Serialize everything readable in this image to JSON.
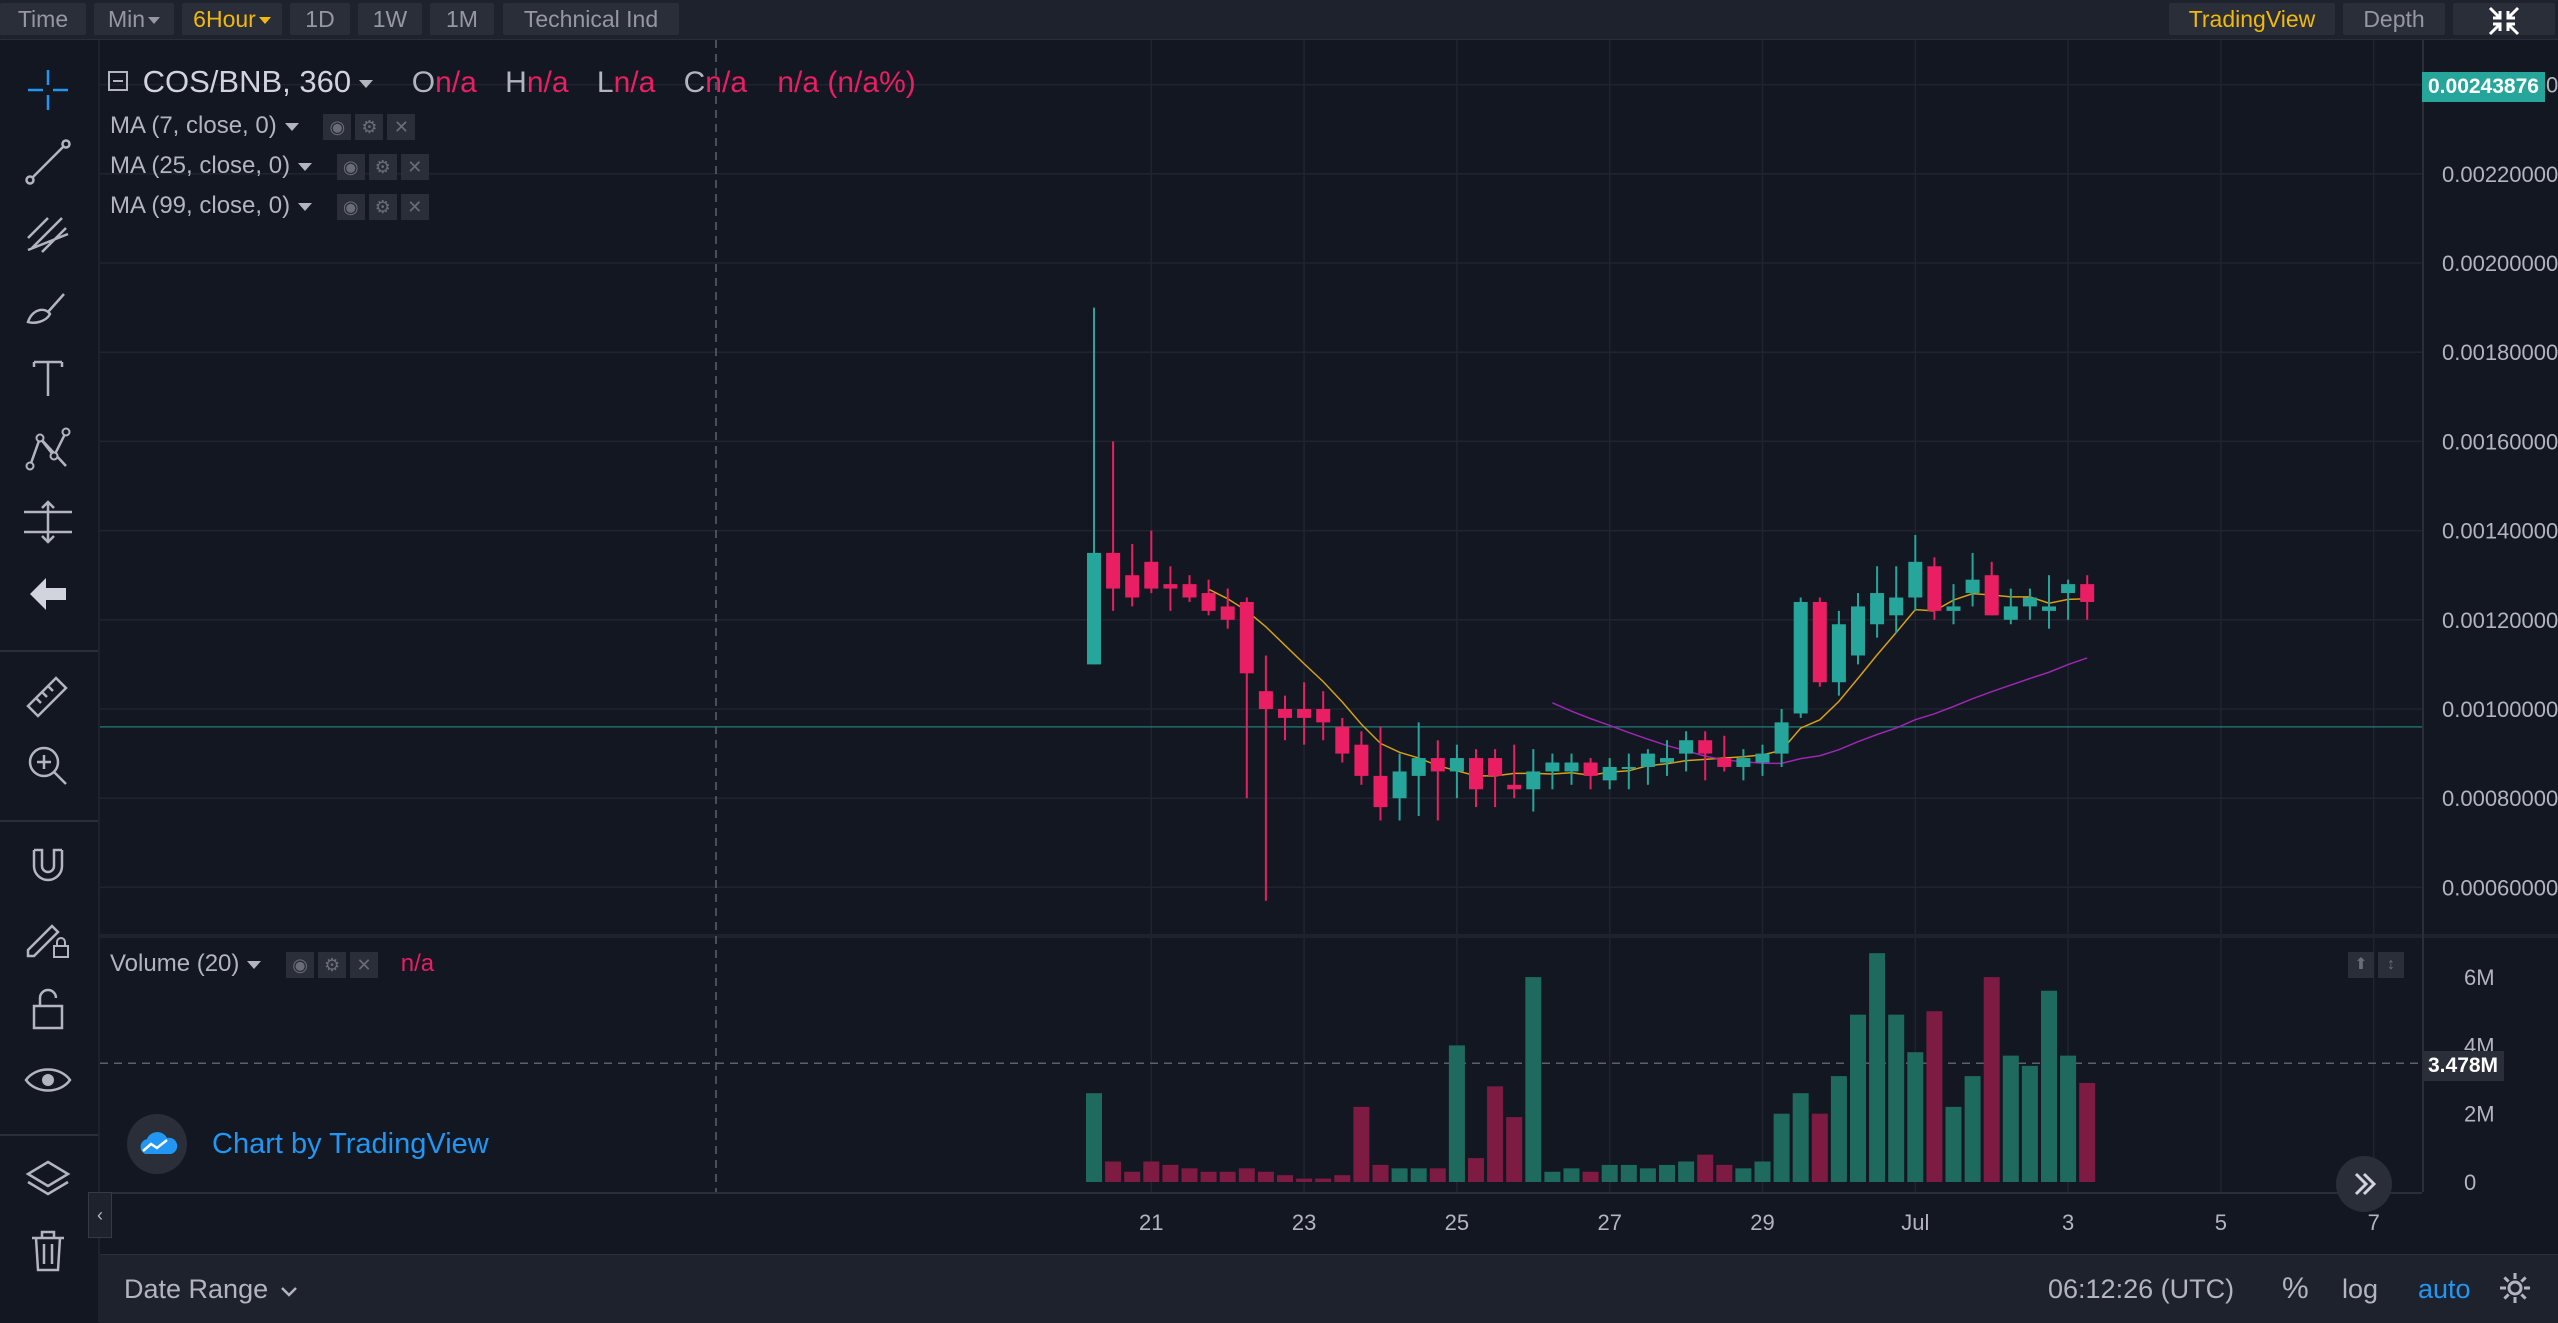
{
  "toolbar": {
    "buttons": [
      {
        "label": "Time"
      },
      {
        "label": "Min",
        "dropdown": true
      },
      {
        "label": "6Hour",
        "dropdown": true,
        "active": true
      },
      {
        "label": "1D"
      },
      {
        "label": "1W"
      },
      {
        "label": "1M"
      },
      {
        "label": "Technical Ind"
      }
    ],
    "right_buttons": [
      {
        "label": "TradingView",
        "active": true
      },
      {
        "label": "Depth"
      }
    ],
    "fullscreen_icon": "exit-fullscreen-icon"
  },
  "left_tools": [
    "crosshair-icon",
    "trend-line-icon",
    "fib-retracement-icon",
    "brush-icon",
    "text-icon",
    "pattern-icon",
    "measure-icon",
    "back-arrow-icon",
    "ruler-icon",
    "zoom-in-icon",
    "magnet-icon",
    "lock-drawing-icon",
    "unlock-icon",
    "eye-icon",
    "layers-icon",
    "trash-icon"
  ],
  "symbol": {
    "name": "COS/BNB, 360",
    "open_label": "O",
    "open_value": "n/a",
    "high_label": "H",
    "high_value": "n/a",
    "low_label": "L",
    "low_value": "n/a",
    "close_label": "C",
    "close_value": "n/a",
    "change": "n/a (n/a%)"
  },
  "indicators": [
    {
      "label": "MA (7, close, 0)"
    },
    {
      "label": "MA (25, close, 0)"
    },
    {
      "label": "MA (99, close, 0)"
    }
  ],
  "volume_label": "Volume (20)",
  "volume_value": "n/a",
  "watermark": "Chart by TradingView",
  "bottom": {
    "date_range": "Date Range",
    "clock": "06:12:26 (UTC)",
    "percent": "%",
    "log": "log",
    "auto": "auto"
  },
  "colors": {
    "up": "#26a69a",
    "down": "#e91e63",
    "accent": "#f0b90b",
    "ma7": "#d4a017",
    "ma25": "#9c27b0",
    "last_price_tag": "#26a69a"
  },
  "chart_data": {
    "type": "candlestick",
    "price_axis": [
      "0.00240000",
      "0.00220000",
      "0.00200000",
      "0.00180000",
      "0.00160000",
      "0.00140000",
      "0.00120000",
      "0.00100000",
      "0.00080000",
      "0.00060000"
    ],
    "ylim": [
      0.0005,
      0.0025
    ],
    "last_price": "0.00243876",
    "crosshair_price": 0.00096,
    "volume_axis": [
      "6M",
      "4M",
      "2M",
      "0"
    ],
    "volume_ylim": [
      0,
      6500000
    ],
    "volume_marker": "3.478M",
    "volume_marker_value": 3478000,
    "x_ticks": [
      {
        "label": "21",
        "i": 3
      },
      {
        "label": "23",
        "i": 11
      },
      {
        "label": "25",
        "i": 19
      },
      {
        "label": "27",
        "i": 27
      },
      {
        "label": "29",
        "i": 35
      },
      {
        "label": "Jul",
        "i": 43
      },
      {
        "label": "3",
        "i": 51
      },
      {
        "label": "5",
        "i": 59
      },
      {
        "label": "7",
        "i": 67
      }
    ],
    "candles": [
      [
        0.0011,
        0.0019,
        0.0011,
        0.00135,
        2600000
      ],
      [
        0.00135,
        0.0016,
        0.00122,
        0.00127,
        600000
      ],
      [
        0.0013,
        0.00137,
        0.00123,
        0.00125,
        300000
      ],
      [
        0.00133,
        0.0014,
        0.00126,
        0.00127,
        600000
      ],
      [
        0.00128,
        0.00132,
        0.00122,
        0.00127,
        500000
      ],
      [
        0.00128,
        0.0013,
        0.00124,
        0.00125,
        400000
      ],
      [
        0.00126,
        0.00129,
        0.00121,
        0.00122,
        300000
      ],
      [
        0.00123,
        0.00127,
        0.00118,
        0.0012,
        300000
      ],
      [
        0.00124,
        0.00125,
        0.0008,
        0.00108,
        400000
      ],
      [
        0.00104,
        0.00112,
        0.00057,
        0.001,
        300000
      ],
      [
        0.001,
        0.00103,
        0.00093,
        0.00098,
        200000
      ],
      [
        0.001,
        0.00106,
        0.00092,
        0.00098,
        100000
      ],
      [
        0.001,
        0.00104,
        0.00093,
        0.00097,
        100000
      ],
      [
        0.00096,
        0.00098,
        0.00088,
        0.0009,
        200000
      ],
      [
        0.00092,
        0.00095,
        0.00083,
        0.00085,
        2200000
      ],
      [
        0.00085,
        0.00096,
        0.00075,
        0.00078,
        500000
      ],
      [
        0.0008,
        0.0009,
        0.00075,
        0.00086,
        400000
      ],
      [
        0.00085,
        0.00097,
        0.00076,
        0.00089,
        400000
      ],
      [
        0.00089,
        0.00093,
        0.00075,
        0.00086,
        400000
      ],
      [
        0.00086,
        0.00092,
        0.0008,
        0.00089,
        4000000
      ],
      [
        0.00089,
        0.00091,
        0.00078,
        0.00082,
        700000
      ],
      [
        0.00089,
        0.00091,
        0.00078,
        0.00085,
        2800000
      ],
      [
        0.00083,
        0.00092,
        0.0008,
        0.00082,
        1900000
      ],
      [
        0.00082,
        0.00091,
        0.00077,
        0.00086,
        6000000
      ],
      [
        0.00086,
        0.0009,
        0.00082,
        0.00088,
        300000
      ],
      [
        0.00086,
        0.0009,
        0.00083,
        0.00088,
        400000
      ],
      [
        0.00088,
        0.00089,
        0.00082,
        0.00085,
        300000
      ],
      [
        0.00084,
        0.00089,
        0.00082,
        0.00087,
        500000
      ],
      [
        0.00087,
        0.0009,
        0.00082,
        0.00087,
        500000
      ],
      [
        0.00087,
        0.00091,
        0.00083,
        0.0009,
        400000
      ],
      [
        0.00088,
        0.00093,
        0.00085,
        0.00089,
        500000
      ],
      [
        0.0009,
        0.00095,
        0.00086,
        0.00093,
        600000
      ],
      [
        0.00093,
        0.00095,
        0.00084,
        0.0009,
        800000
      ],
      [
        0.00089,
        0.00094,
        0.00086,
        0.00087,
        500000
      ],
      [
        0.00087,
        0.00091,
        0.00084,
        0.00089,
        400000
      ],
      [
        0.00088,
        0.00092,
        0.00085,
        0.0009,
        600000
      ],
      [
        0.0009,
        0.001,
        0.00087,
        0.00097,
        2000000
      ],
      [
        0.00099,
        0.00125,
        0.00098,
        0.00124,
        2600000
      ],
      [
        0.00124,
        0.00125,
        0.00105,
        0.00106,
        2000000
      ],
      [
        0.00106,
        0.00122,
        0.00103,
        0.00119,
        3100000
      ],
      [
        0.00112,
        0.00126,
        0.0011,
        0.00123,
        4900000
      ],
      [
        0.00119,
        0.00132,
        0.00116,
        0.00126,
        6700000
      ],
      [
        0.00121,
        0.00132,
        0.00117,
        0.00125,
        4900000
      ],
      [
        0.00125,
        0.00139,
        0.00122,
        0.00133,
        3800000
      ],
      [
        0.00132,
        0.00134,
        0.0012,
        0.00122,
        5000000
      ],
      [
        0.00122,
        0.00128,
        0.00119,
        0.00123,
        2200000
      ],
      [
        0.00126,
        0.00135,
        0.00123,
        0.00129,
        3100000
      ],
      [
        0.0013,
        0.00133,
        0.00121,
        0.00121,
        6000000
      ],
      [
        0.0012,
        0.00127,
        0.00119,
        0.00123,
        3700000
      ],
      [
        0.00123,
        0.00127,
        0.0012,
        0.00125,
        3400000
      ],
      [
        0.00122,
        0.0013,
        0.00118,
        0.00123,
        5600000
      ],
      [
        0.00126,
        0.00129,
        0.0012,
        0.00128,
        3700000
      ],
      [
        0.00128,
        0.0013,
        0.0012,
        0.00124,
        2900000
      ]
    ]
  }
}
